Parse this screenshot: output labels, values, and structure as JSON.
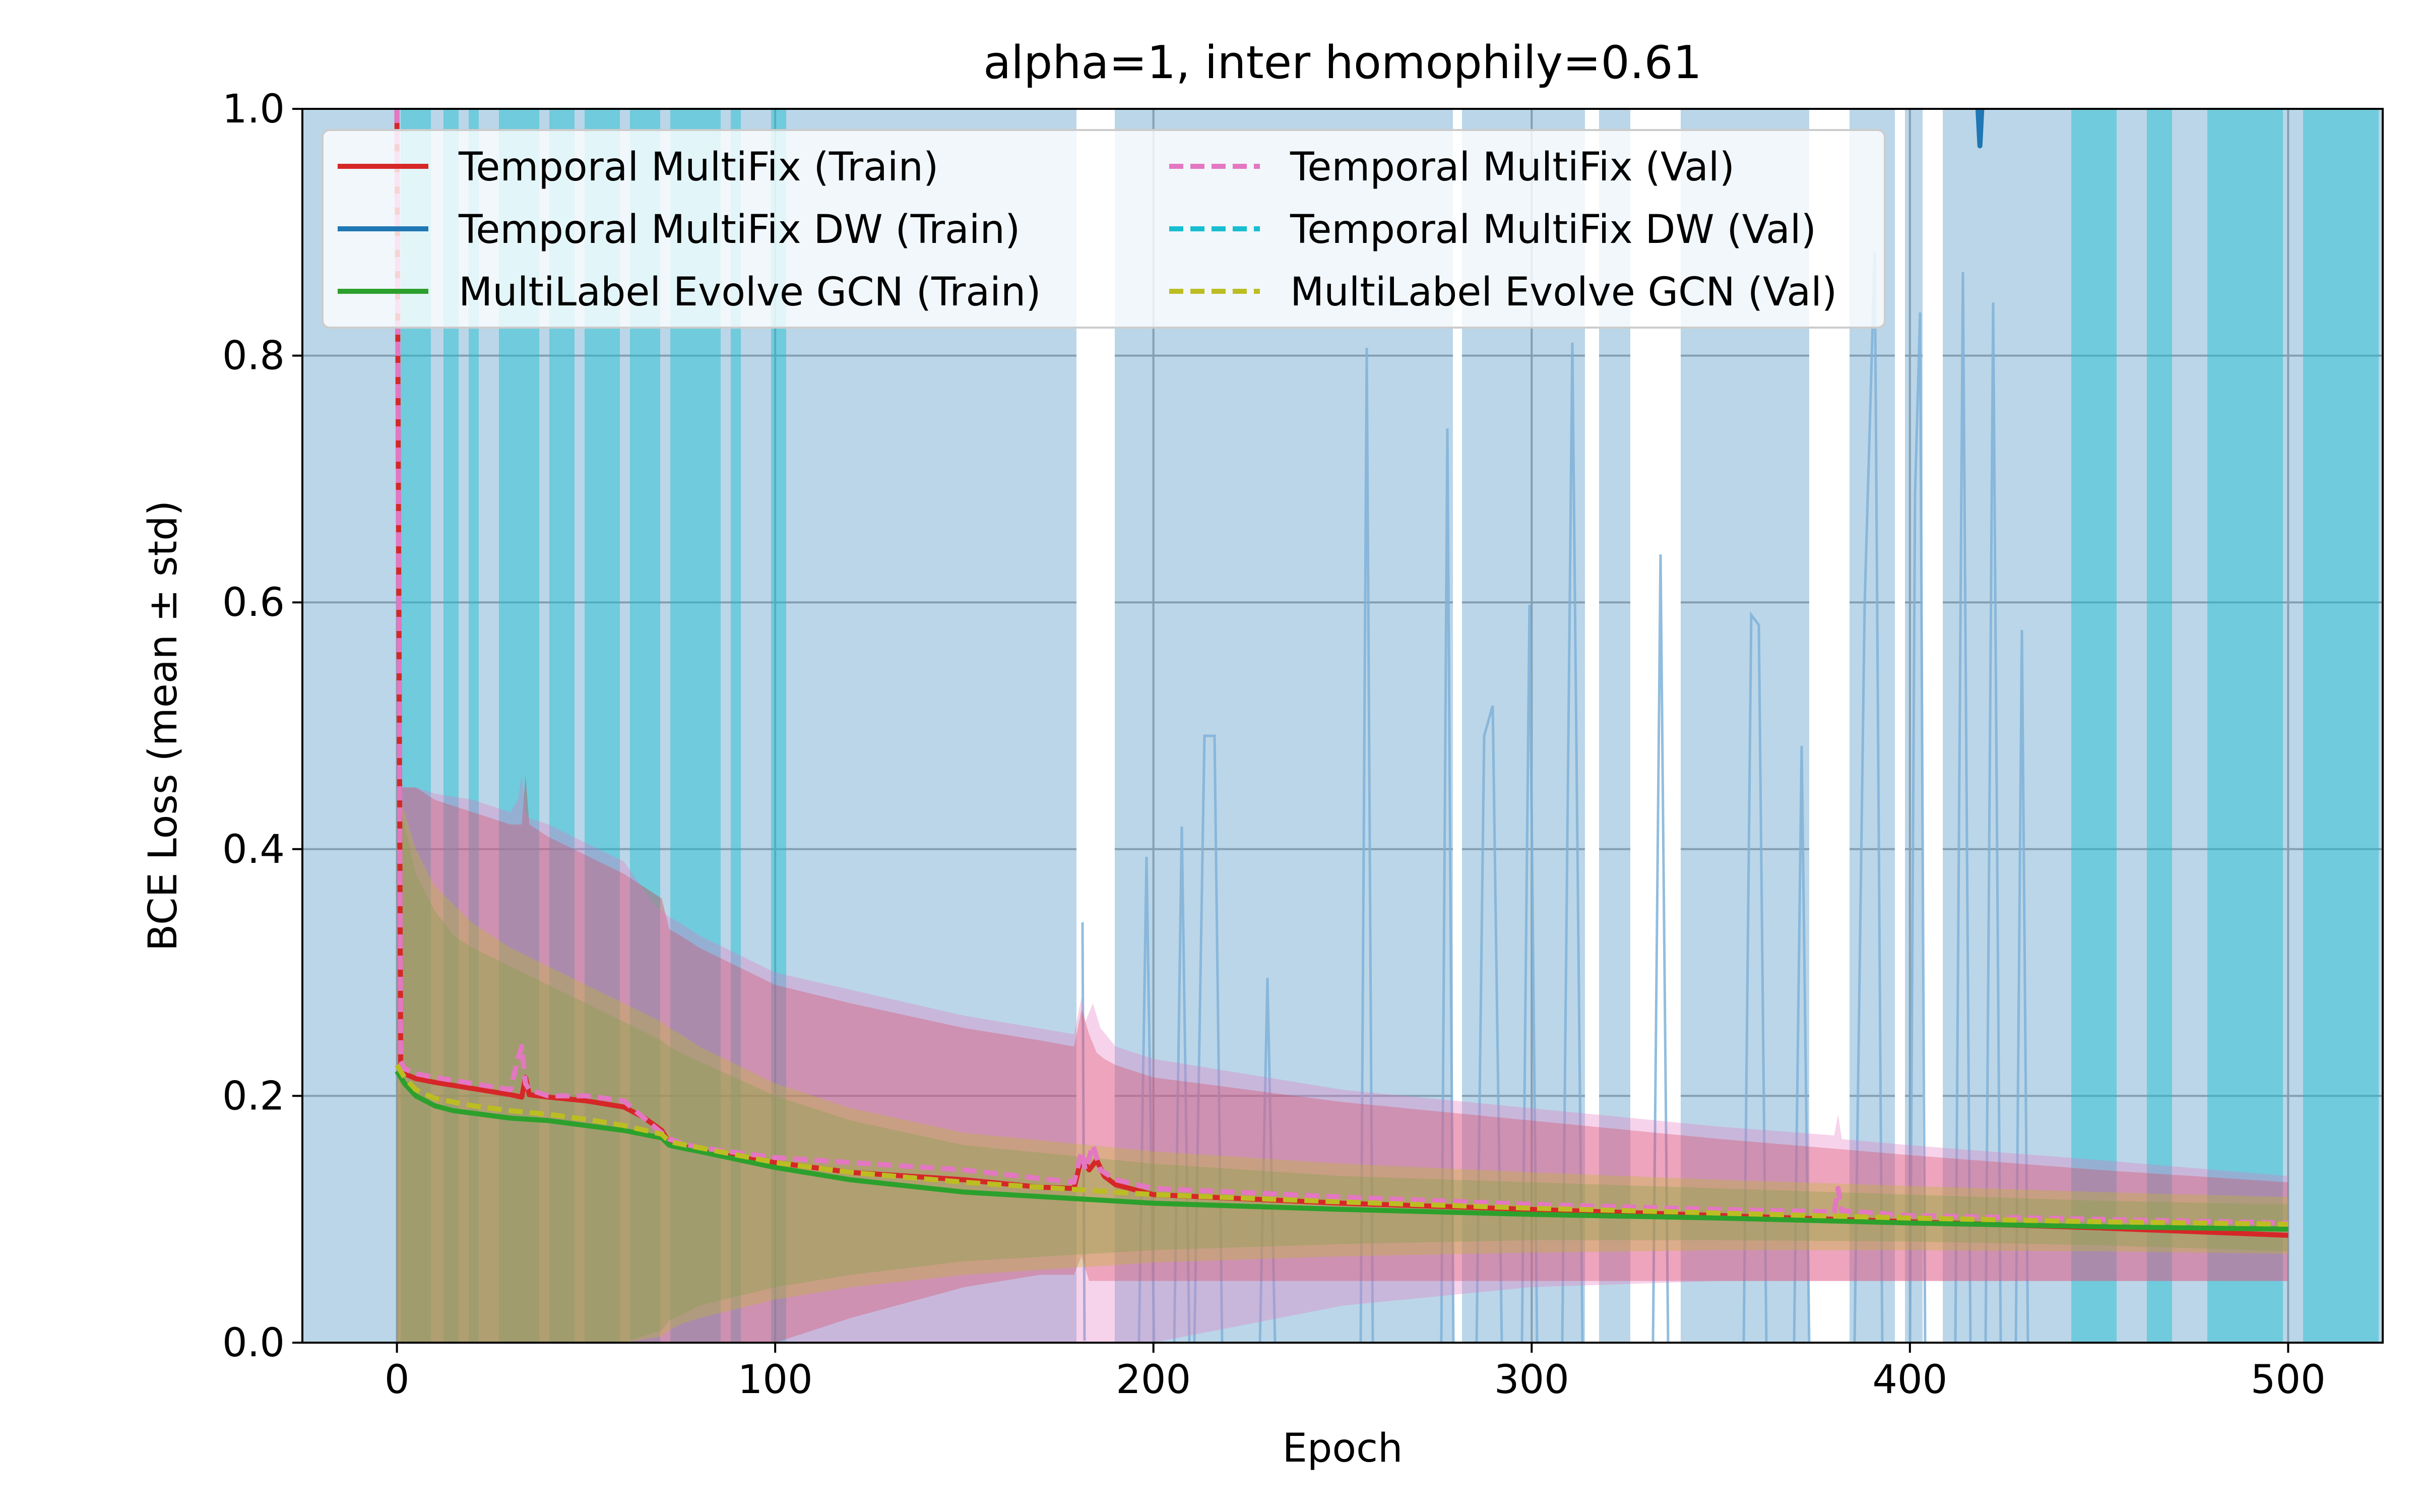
{
  "chart_data": {
    "type": "line",
    "title": "alpha=1, inter homophily=0.61",
    "xlabel": "Epoch",
    "ylabel": "BCE Loss (mean ± std)",
    "xlim": [
      -25,
      525
    ],
    "ylim": [
      0.0,
      1.0
    ],
    "xticks": [
      0,
      100,
      200,
      300,
      400,
      500
    ],
    "yticks": [
      0.0,
      0.2,
      0.4,
      0.6,
      0.8,
      1.0
    ],
    "grid": true,
    "legend": {
      "position": "upper-left",
      "columns": 2
    },
    "series": [
      {
        "name": "Temporal MultiFix (Train)",
        "color": "#d62728",
        "dash": "solid",
        "x": [
          0,
          1,
          2,
          5,
          10,
          20,
          30,
          33,
          34,
          35,
          40,
          50,
          60,
          65,
          70,
          72,
          75,
          80,
          100,
          120,
          150,
          170,
          179,
          181,
          183,
          185,
          187,
          190,
          200,
          250,
          300,
          350,
          400,
          450,
          500
        ],
        "y": [
          1.0,
          0.225,
          0.218,
          0.214,
          0.211,
          0.206,
          0.201,
          0.199,
          0.215,
          0.201,
          0.199,
          0.196,
          0.191,
          0.183,
          0.172,
          0.162,
          0.16,
          0.155,
          0.146,
          0.138,
          0.132,
          0.126,
          0.125,
          0.15,
          0.14,
          0.148,
          0.135,
          0.128,
          0.12,
          0.113,
          0.108,
          0.103,
          0.098,
          0.093,
          0.087
        ],
        "std_lower": [
          0.0,
          0.0,
          0.0,
          0.0,
          0.0,
          0.0,
          0.0,
          0.0,
          0.0,
          0.0,
          0.0,
          0.0,
          0.0,
          0.0,
          0.0,
          0.0,
          0.0,
          0.0,
          0.0,
          0.02,
          0.045,
          0.055,
          0.055,
          0.07,
          0.05,
          0.05,
          0.05,
          0.05,
          0.05,
          0.05,
          0.05,
          0.05,
          0.05,
          0.05,
          0.05
        ],
        "std_upper": [
          1.0,
          0.45,
          0.45,
          0.45,
          0.44,
          0.43,
          0.42,
          0.42,
          0.46,
          0.42,
          0.41,
          0.395,
          0.38,
          0.37,
          0.36,
          0.335,
          0.33,
          0.32,
          0.29,
          0.275,
          0.255,
          0.245,
          0.24,
          0.27,
          0.25,
          0.235,
          0.23,
          0.225,
          0.215,
          0.195,
          0.18,
          0.165,
          0.152,
          0.14,
          0.13
        ]
      },
      {
        "name": "Temporal MultiFix DW (Train)",
        "color": "#1f77b4",
        "dash": "solid",
        "x": [
          418,
          418.5,
          419
        ],
        "y": [
          1.0,
          0.97,
          1.0
        ]
      },
      {
        "name": "MultiLabel Evolve GCN (Train)",
        "color": "#2ca02c",
        "dash": "solid",
        "x": [
          0,
          2,
          5,
          10,
          15,
          20,
          30,
          40,
          50,
          60,
          70,
          72,
          75,
          80,
          100,
          120,
          150,
          200,
          250,
          300,
          350,
          400,
          450,
          500
        ],
        "y": [
          0.22,
          0.21,
          0.2,
          0.192,
          0.188,
          0.186,
          0.182,
          0.18,
          0.176,
          0.172,
          0.166,
          0.16,
          0.158,
          0.155,
          0.142,
          0.132,
          0.122,
          0.113,
          0.108,
          0.104,
          0.101,
          0.097,
          0.094,
          0.092
        ],
        "std_lower": [
          0.0,
          0.0,
          0.0,
          0.0,
          0.0,
          0.0,
          0.0,
          0.0,
          0.0,
          0.0,
          0.01,
          0.018,
          0.022,
          0.03,
          0.045,
          0.055,
          0.066,
          0.075,
          0.08,
          0.083,
          0.083,
          0.082,
          0.079,
          0.074
        ],
        "std_upper": [
          0.44,
          0.42,
          0.38,
          0.35,
          0.33,
          0.32,
          0.305,
          0.29,
          0.275,
          0.26,
          0.245,
          0.24,
          0.235,
          0.228,
          0.2,
          0.18,
          0.16,
          0.145,
          0.135,
          0.13,
          0.125,
          0.12,
          0.115,
          0.112
        ]
      },
      {
        "name": "Temporal MultiFix (Val)",
        "color": "#e377c2",
        "dash": "dashed",
        "x": [
          0,
          1,
          2,
          5,
          10,
          20,
          30,
          32,
          33,
          34,
          35,
          40,
          50,
          60,
          68,
          70,
          72,
          75,
          80,
          100,
          150,
          179,
          181,
          182,
          184,
          186,
          190,
          200,
          250,
          300,
          350,
          380,
          381,
          382,
          400,
          450,
          500
        ],
        "y": [
          1.0,
          0.228,
          0.222,
          0.218,
          0.215,
          0.21,
          0.205,
          0.23,
          0.24,
          0.21,
          0.205,
          0.2,
          0.2,
          0.196,
          0.175,
          0.17,
          0.165,
          0.162,
          0.158,
          0.15,
          0.14,
          0.13,
          0.155,
          0.14,
          0.16,
          0.14,
          0.132,
          0.125,
          0.118,
          0.112,
          0.108,
          0.106,
          0.125,
          0.107,
          0.103,
          0.1,
          0.097
        ],
        "std_lower": [
          0.0,
          0.0,
          0.0,
          0.0,
          0.0,
          0.0,
          0.0,
          0.0,
          0.0,
          0.0,
          0.0,
          0.0,
          0.0,
          0.0,
          0.0,
          0.0,
          0.0,
          0.0,
          0.0,
          0.0,
          0.0,
          0.0,
          0.0,
          0.0,
          0.0,
          0.0,
          0.0,
          0.0,
          0.03,
          0.045,
          0.05,
          0.05,
          0.05,
          0.05,
          0.05,
          0.05,
          0.05
        ],
        "std_upper": [
          1.0,
          0.455,
          0.45,
          0.45,
          0.445,
          0.44,
          0.43,
          0.44,
          0.46,
          0.43,
          0.425,
          0.42,
          0.405,
          0.39,
          0.355,
          0.35,
          0.345,
          0.34,
          0.33,
          0.3,
          0.265,
          0.25,
          0.28,
          0.26,
          0.275,
          0.255,
          0.24,
          0.23,
          0.205,
          0.19,
          0.175,
          0.168,
          0.185,
          0.165,
          0.16,
          0.148,
          0.135
        ]
      },
      {
        "name": "Temporal MultiFix DW (Val)",
        "color": "#17becf",
        "dash": "dashed",
        "x": [],
        "y": []
      },
      {
        "name": "MultiLabel Evolve GCN (Val)",
        "color": "#bcbd22",
        "dash": "dashed",
        "x": [
          0,
          2,
          5,
          10,
          20,
          30,
          40,
          50,
          60,
          70,
          72,
          75,
          80,
          100,
          120,
          150,
          200,
          250,
          300,
          350,
          400,
          450,
          500
        ],
        "y": [
          0.225,
          0.215,
          0.205,
          0.198,
          0.192,
          0.188,
          0.185,
          0.181,
          0.176,
          0.169,
          0.163,
          0.161,
          0.158,
          0.146,
          0.138,
          0.13,
          0.12,
          0.114,
          0.109,
          0.105,
          0.101,
          0.098,
          0.096
        ],
        "std_lower": [
          0.0,
          0.0,
          0.0,
          0.0,
          0.0,
          0.0,
          0.0,
          0.0,
          0.0,
          0.005,
          0.01,
          0.015,
          0.02,
          0.035,
          0.045,
          0.055,
          0.065,
          0.07,
          0.073,
          0.075,
          0.075,
          0.074,
          0.072
        ],
        "std_upper": [
          0.45,
          0.43,
          0.4,
          0.37,
          0.34,
          0.32,
          0.305,
          0.29,
          0.275,
          0.26,
          0.255,
          0.25,
          0.24,
          0.21,
          0.19,
          0.17,
          0.155,
          0.145,
          0.138,
          0.132,
          0.127,
          0.122,
          0.118
        ]
      }
    ]
  }
}
